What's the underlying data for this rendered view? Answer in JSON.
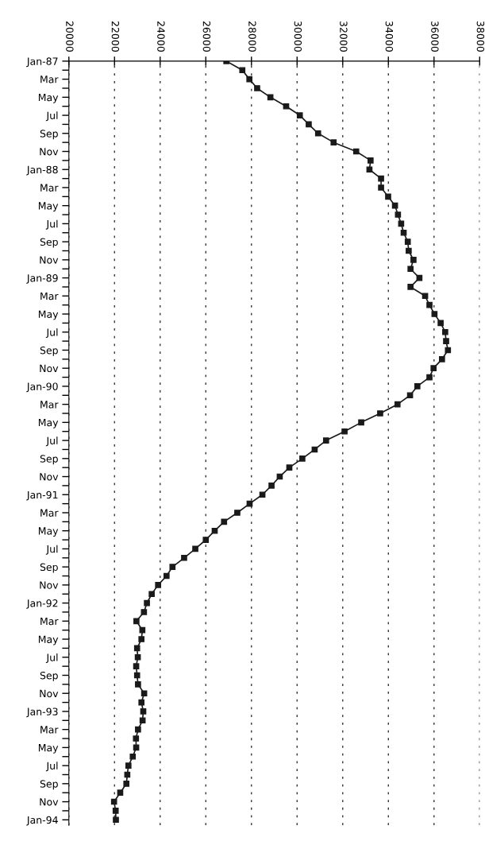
{
  "chart_data": {
    "type": "line",
    "orientation": "horizontal",
    "marker": "square",
    "line_style": "solid",
    "grid": "x",
    "categories": [
      "Jan-87",
      null,
      "Mar",
      null,
      "May",
      null,
      "Jul",
      null,
      "Sep",
      null,
      "Nov",
      null,
      "Jan-88",
      null,
      "Mar",
      null,
      "May",
      null,
      "Jul",
      null,
      "Sep",
      null,
      "Nov",
      null,
      "Jan-89",
      null,
      "Mar",
      null,
      "May",
      null,
      "Jul",
      null,
      "Sep",
      null,
      "Nov",
      null,
      "Jan-90",
      null,
      "Mar",
      null,
      "May",
      null,
      "Jul",
      null,
      "Sep",
      null,
      "Nov",
      null,
      "Jan-91",
      null,
      "Mar",
      null,
      "May",
      null,
      "Jul",
      null,
      "Sep",
      null,
      "Nov",
      null,
      "Jan-92",
      null,
      "Mar",
      null,
      "May",
      null,
      "Jul",
      null,
      "Sep",
      null,
      "Nov",
      null,
      "Jan-93",
      null,
      "Mar",
      null,
      "May",
      null,
      "Jul",
      null,
      "Sep",
      null,
      "Nov",
      null,
      "Jan-94"
    ],
    "series": [
      {
        "color": "#1a1a1a",
        "values": [
          26900,
          27600,
          27910,
          28250,
          28830,
          29520,
          30120,
          30510,
          30920,
          31600,
          32590,
          33220,
          33170,
          33680,
          33680,
          33990,
          34290,
          34420,
          34560,
          34670,
          34850,
          34890,
          35100,
          34970,
          35360,
          34970,
          35610,
          35800,
          36020,
          36290,
          36490,
          36530,
          36610,
          36350,
          35980,
          35800,
          35270,
          34950,
          34400,
          33640,
          32810,
          32080,
          31270,
          30770,
          30230,
          29660,
          29240,
          28880,
          28480,
          27920,
          27380,
          26800,
          26390,
          26000,
          25540,
          25050,
          24540,
          24280,
          23910,
          23630,
          23420,
          23290,
          22960,
          23220,
          23180,
          22990,
          23020,
          22950,
          22990,
          23030,
          23300,
          23180,
          23260,
          23230,
          23030,
          22940,
          22950,
          22800,
          22610,
          22560,
          22520,
          22250,
          21980,
          22050,
          22060
        ]
      }
    ],
    "xlim": [
      20000,
      38000
    ],
    "xticks": [
      20000,
      22000,
      24000,
      26000,
      28000,
      30000,
      32000,
      34000,
      36000,
      38000
    ]
  }
}
